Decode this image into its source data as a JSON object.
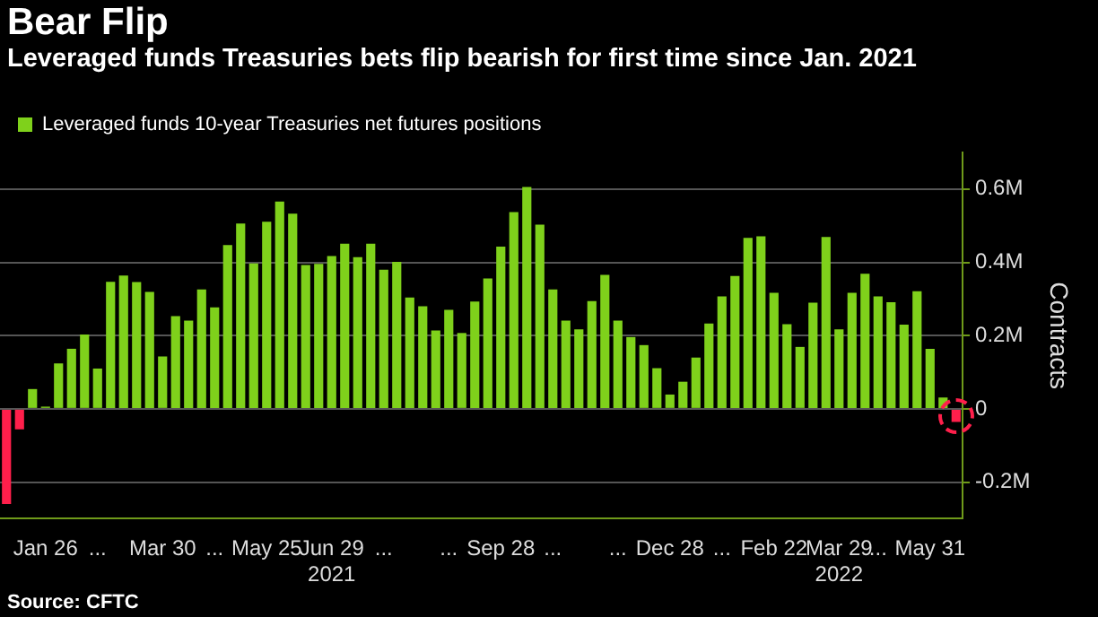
{
  "chart_data": {
    "type": "bar",
    "title": "Bear Flip",
    "subtitle": "Leveraged funds Treasuries bets flip bearish for first time since Jan. 2021",
    "ylabel": "Contracts",
    "annotations": [
      "Source: CFTC"
    ],
    "categories": [
      null,
      null,
      null,
      "Jan 26",
      null,
      null,
      null,
      "...",
      null,
      null,
      null,
      null,
      "Mar 30",
      null,
      null,
      null,
      "...",
      null,
      null,
      null,
      "May 25",
      null,
      null,
      null,
      null,
      "Jun 29\n2021",
      null,
      null,
      null,
      "...",
      null,
      null,
      null,
      null,
      "...",
      null,
      null,
      null,
      "Sep 28",
      null,
      null,
      null,
      "...",
      null,
      null,
      null,
      null,
      "...",
      null,
      null,
      null,
      "Dec 28",
      null,
      null,
      null,
      "...",
      null,
      null,
      null,
      "Feb 22",
      null,
      null,
      null,
      null,
      "Mar 29\n2022",
      null,
      null,
      "...",
      null,
      null,
      null,
      "May 31",
      null,
      null
    ],
    "series": [
      {
        "name": "Leveraged funds 10-year Treasuries net futures positions",
        "color": "#7fd11b",
        "colors": [
          "#ff1f4b",
          "#ff1f4b",
          "#7fd11b",
          "#7fd11b",
          "#7fd11b",
          "#7fd11b",
          "#7fd11b",
          "#7fd11b",
          "#7fd11b",
          "#7fd11b",
          "#7fd11b",
          "#7fd11b",
          "#7fd11b",
          "#7fd11b",
          "#7fd11b",
          "#7fd11b",
          "#7fd11b",
          "#7fd11b",
          "#7fd11b",
          "#7fd11b",
          "#7fd11b",
          "#7fd11b",
          "#7fd11b",
          "#7fd11b",
          "#7fd11b",
          "#7fd11b",
          "#7fd11b",
          "#7fd11b",
          "#7fd11b",
          "#7fd11b",
          "#7fd11b",
          "#7fd11b",
          "#7fd11b",
          "#7fd11b",
          "#7fd11b",
          "#7fd11b",
          "#7fd11b",
          "#7fd11b",
          "#7fd11b",
          "#7fd11b",
          "#7fd11b",
          "#7fd11b",
          "#7fd11b",
          "#7fd11b",
          "#7fd11b",
          "#7fd11b",
          "#7fd11b",
          "#7fd11b",
          "#7fd11b",
          "#7fd11b",
          "#7fd11b",
          "#7fd11b",
          "#7fd11b",
          "#7fd11b",
          "#7fd11b",
          "#7fd11b",
          "#7fd11b",
          "#7fd11b",
          "#7fd11b",
          "#7fd11b",
          "#7fd11b",
          "#7fd11b",
          "#7fd11b",
          "#7fd11b",
          "#7fd11b",
          "#7fd11b",
          "#7fd11b",
          "#7fd11b",
          "#7fd11b",
          "#7fd11b",
          "#7fd11b",
          "#7fd11b",
          "#7fd11b",
          "#ff1f4b"
        ],
        "values": [
          -0.26,
          -0.056,
          0.054,
          0.006,
          0.124,
          0.164,
          0.203,
          0.11,
          0.347,
          0.364,
          0.346,
          0.319,
          0.143,
          0.253,
          0.241,
          0.326,
          0.277,
          0.447,
          0.506,
          0.397,
          0.511,
          0.566,
          0.533,
          0.393,
          0.396,
          0.417,
          0.451,
          0.414,
          0.451,
          0.38,
          0.401,
          0.304,
          0.28,
          0.214,
          0.27,
          0.207,
          0.293,
          0.356,
          0.443,
          0.537,
          0.606,
          0.503,
          0.326,
          0.241,
          0.217,
          0.294,
          0.366,
          0.241,
          0.196,
          0.174,
          0.111,
          0.039,
          0.074,
          0.14,
          0.233,
          0.307,
          0.363,
          0.467,
          0.471,
          0.317,
          0.231,
          0.169,
          0.29,
          0.469,
          0.217,
          0.317,
          0.369,
          0.307,
          0.291,
          0.23,
          0.321,
          0.164,
          0.031,
          -0.036
        ]
      }
    ],
    "ylim": [
      -0.3,
      0.7
    ],
    "yticks": [
      {
        "value": -0.2,
        "label": "-0.2M"
      },
      0,
      {
        "value": 0.2,
        "label": "0.2M"
      },
      {
        "value": 0.4,
        "label": "0.4M"
      },
      {
        "value": 0.6,
        "label": "0.6M"
      }
    ],
    "grid": true,
    "legend": "top left"
  }
}
